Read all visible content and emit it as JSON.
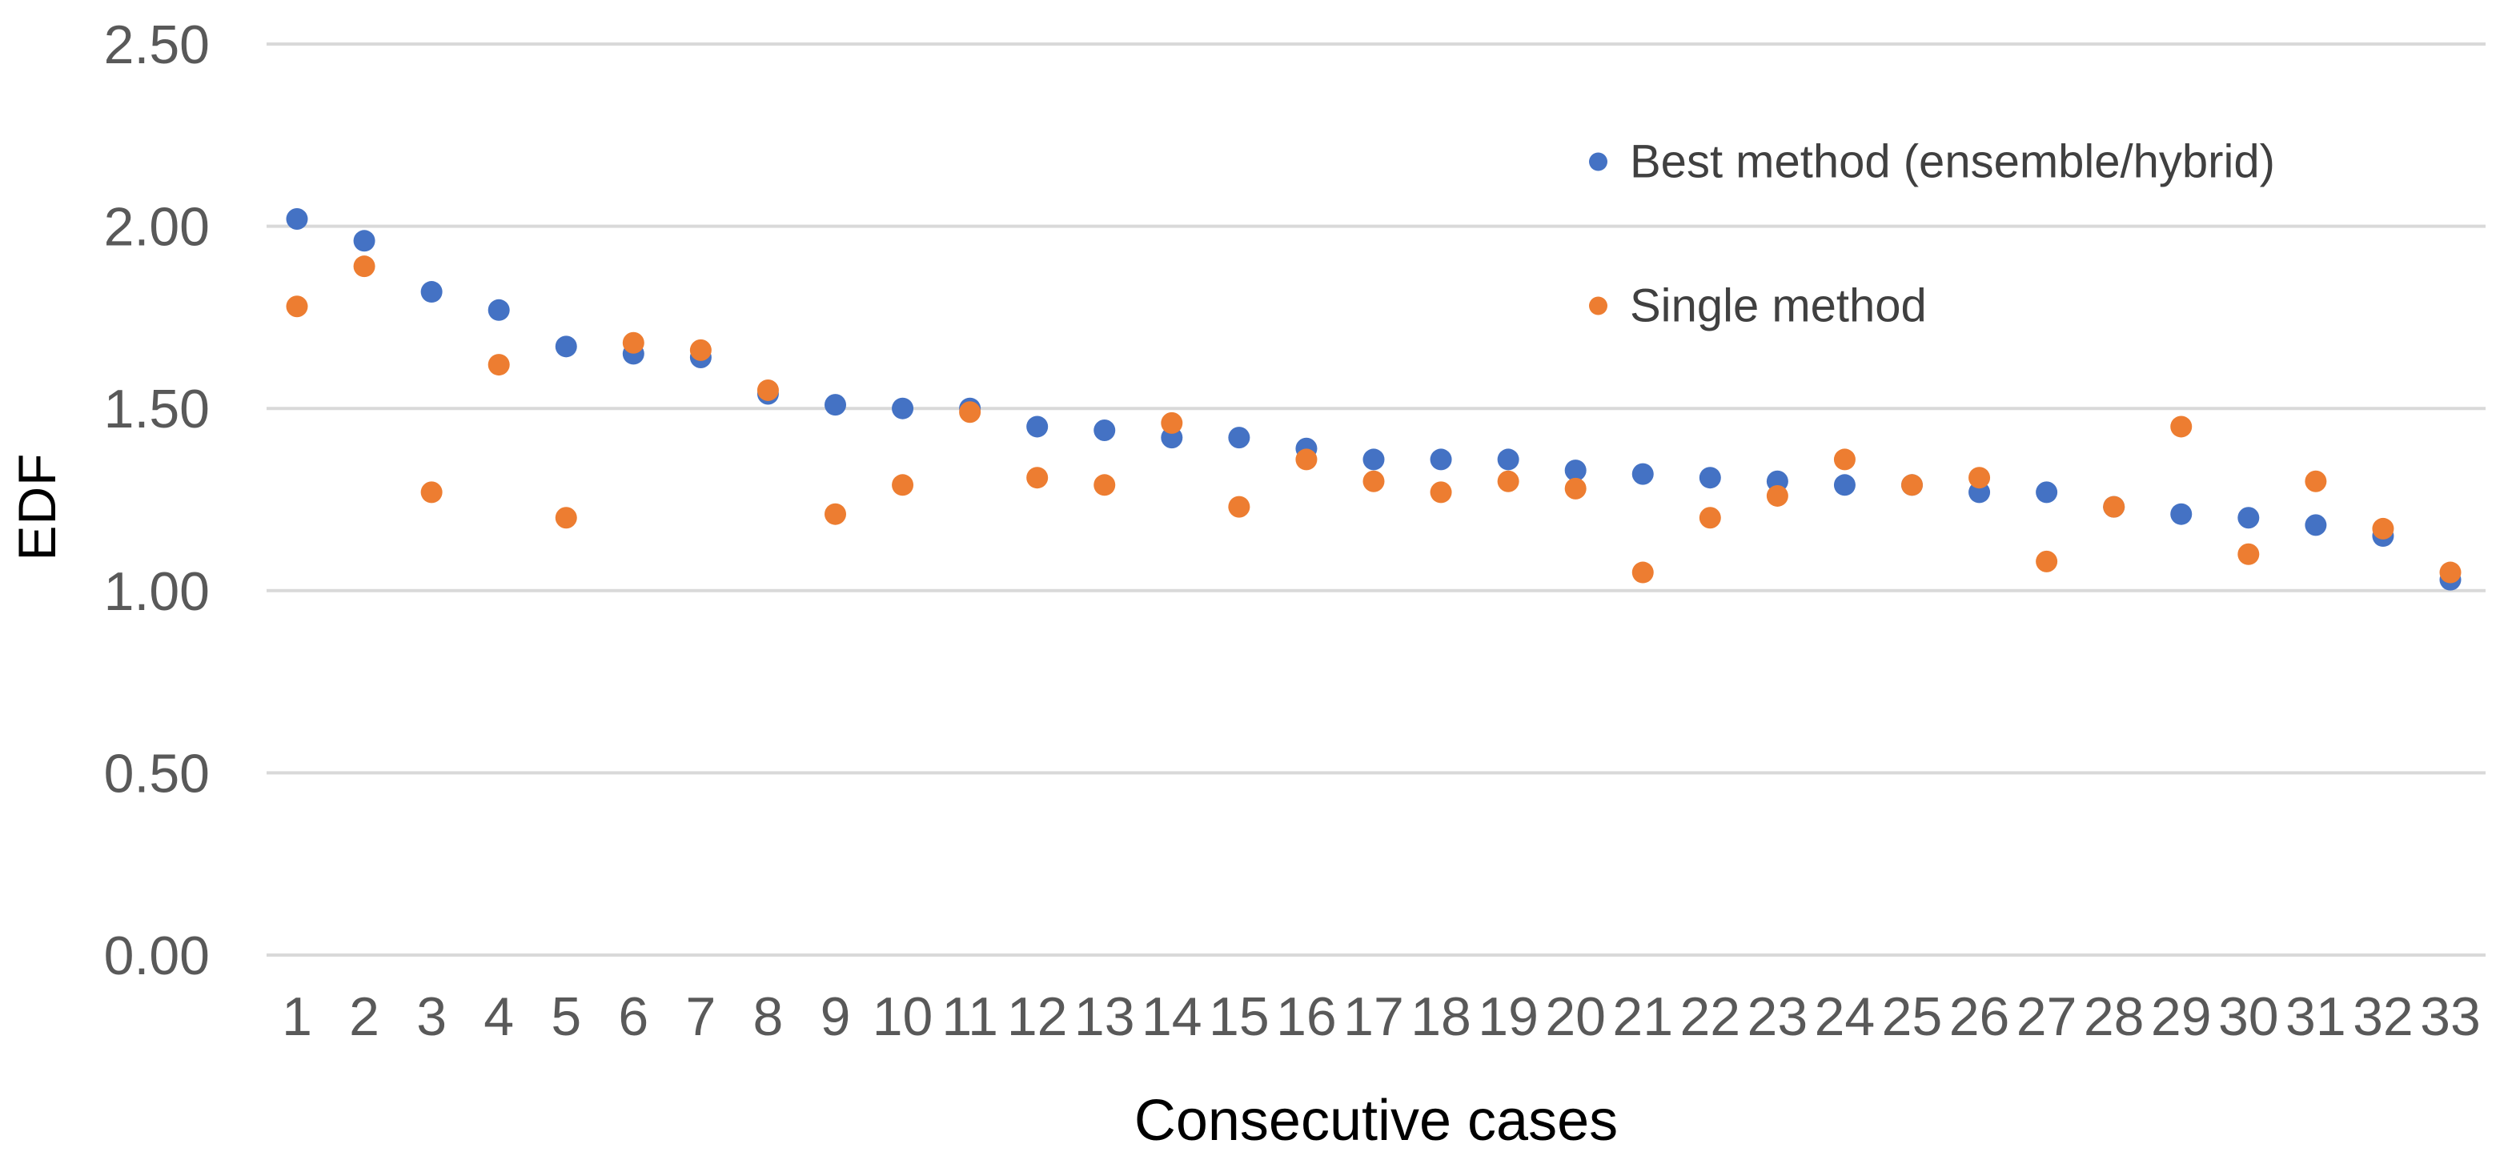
{
  "chart_data": {
    "type": "scatter",
    "title": "",
    "xlabel": "Consecutive cases",
    "ylabel": "EDF",
    "x": [
      1,
      2,
      3,
      4,
      5,
      6,
      7,
      8,
      9,
      10,
      11,
      12,
      13,
      14,
      15,
      16,
      17,
      18,
      19,
      20,
      21,
      22,
      23,
      24,
      25,
      26,
      27,
      28,
      29,
      30,
      31,
      32,
      33
    ],
    "series": [
      {
        "name": "Best method (ensemble/hybrid)",
        "color": "#4472C4",
        "values": [
          2.02,
          1.96,
          1.82,
          1.77,
          1.67,
          1.65,
          1.64,
          1.54,
          1.51,
          1.5,
          1.5,
          1.45,
          1.44,
          1.42,
          1.42,
          1.39,
          1.36,
          1.36,
          1.36,
          1.33,
          1.32,
          1.31,
          1.3,
          1.29,
          1.29,
          1.27,
          1.27,
          1.23,
          1.21,
          1.2,
          1.18,
          1.15,
          1.03
        ]
      },
      {
        "name": "Single method",
        "color": "#ED7D31",
        "values": [
          1.78,
          1.89,
          1.27,
          1.62,
          1.2,
          1.68,
          1.66,
          1.55,
          1.21,
          1.29,
          1.49,
          1.31,
          1.29,
          1.46,
          1.23,
          1.36,
          1.3,
          1.27,
          1.3,
          1.28,
          1.05,
          1.2,
          1.26,
          1.36,
          1.29,
          1.31,
          1.08,
          1.23,
          1.45,
          1.1,
          1.3,
          1.17,
          1.05
        ]
      }
    ],
    "ylim": [
      0,
      2.5
    ],
    "yticks": [
      0.0,
      0.5,
      1.0,
      1.5,
      2.0,
      2.5
    ],
    "ytick_labels": [
      "0.00",
      "0.50",
      "1.00",
      "1.50",
      "2.00",
      "2.50"
    ],
    "grid": "horizontal",
    "legend_position": "top-right"
  },
  "colors": {
    "gridline": "#D9D9D9",
    "tick_label": "#595959",
    "legend_text": "#404040",
    "axis_title": "#000000",
    "background": "#FFFFFF"
  }
}
